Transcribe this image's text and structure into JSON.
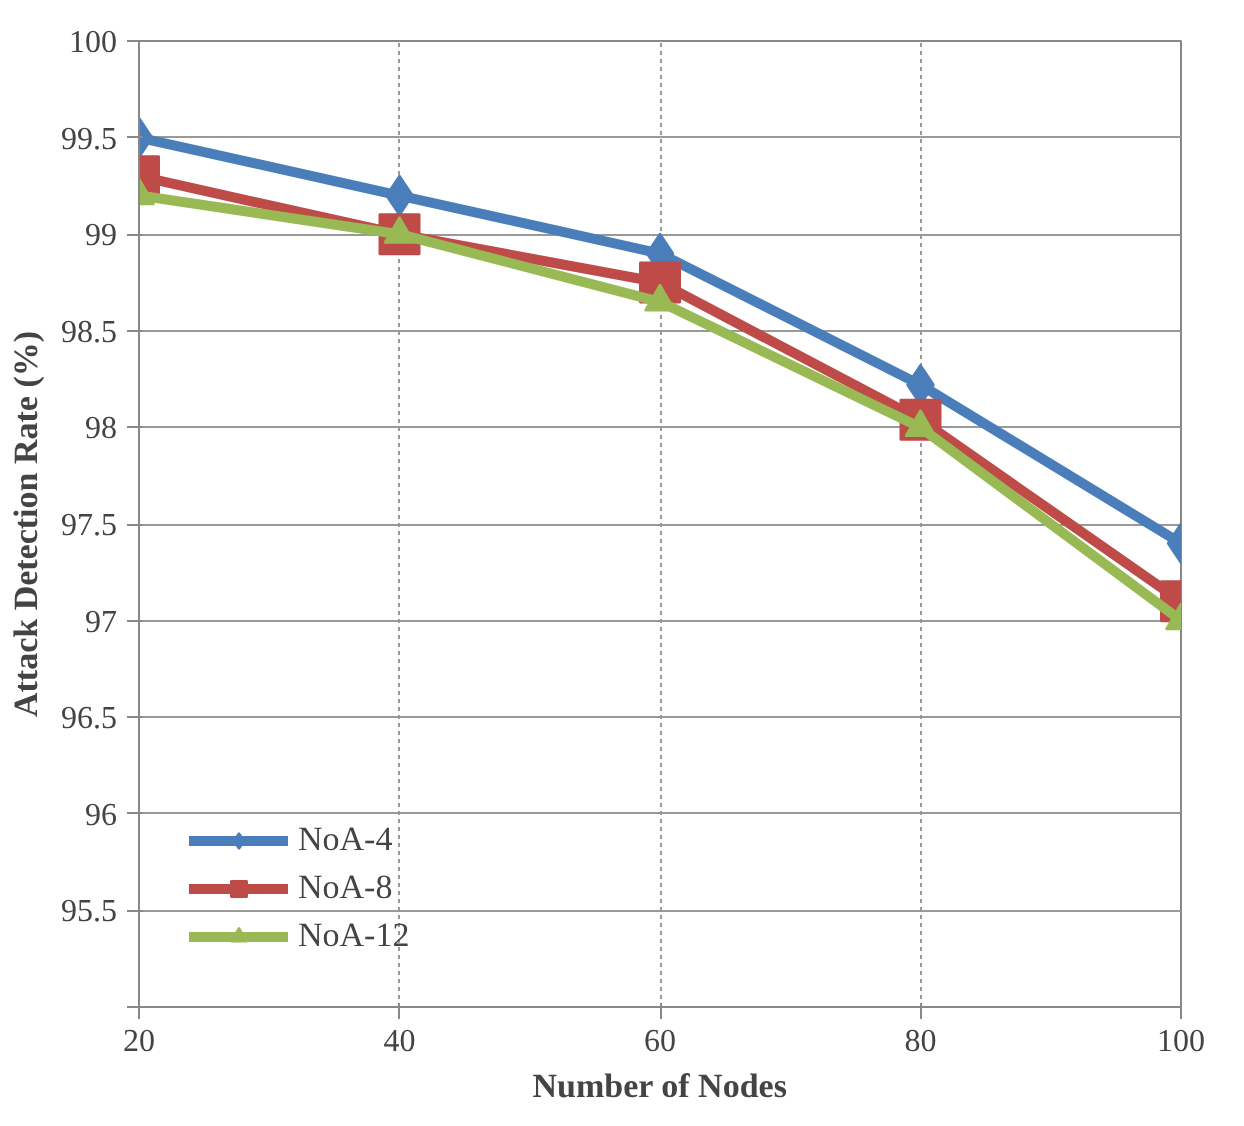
{
  "chart_data": {
    "type": "line",
    "xlabel": "Number of Nodes",
    "ylabel": "Attack Detection Rate (%)",
    "x": [
      20,
      40,
      60,
      80,
      100
    ],
    "xlim": [
      20,
      100
    ],
    "xticks": [
      20,
      40,
      60,
      80,
      100
    ],
    "ylim": [
      95,
      100
    ],
    "yticks": [
      {
        "value": 95,
        "label": null
      },
      95.5,
      96,
      96.5,
      97,
      97.5,
      98,
      98.5,
      99,
      99.5,
      100
    ],
    "grid": true,
    "legend": "bottom left",
    "line_style": "solid",
    "series": [
      {
        "name": "NoA-4",
        "color": "#4a7ebb",
        "marker": "diamond",
        "values": [
          99.5,
          99.2,
          98.9,
          98.22,
          97.4
        ]
      },
      {
        "name": "NoA-8",
        "color": "#be4b48",
        "marker": "square",
        "values": [
          99.3,
          99.0,
          98.75,
          98.04,
          97.1
        ]
      },
      {
        "name": "NoA-12",
        "color": "#98b954",
        "marker": "triangle",
        "values": [
          99.2,
          99.0,
          98.65,
          98.0,
          97.0
        ]
      }
    ]
  }
}
